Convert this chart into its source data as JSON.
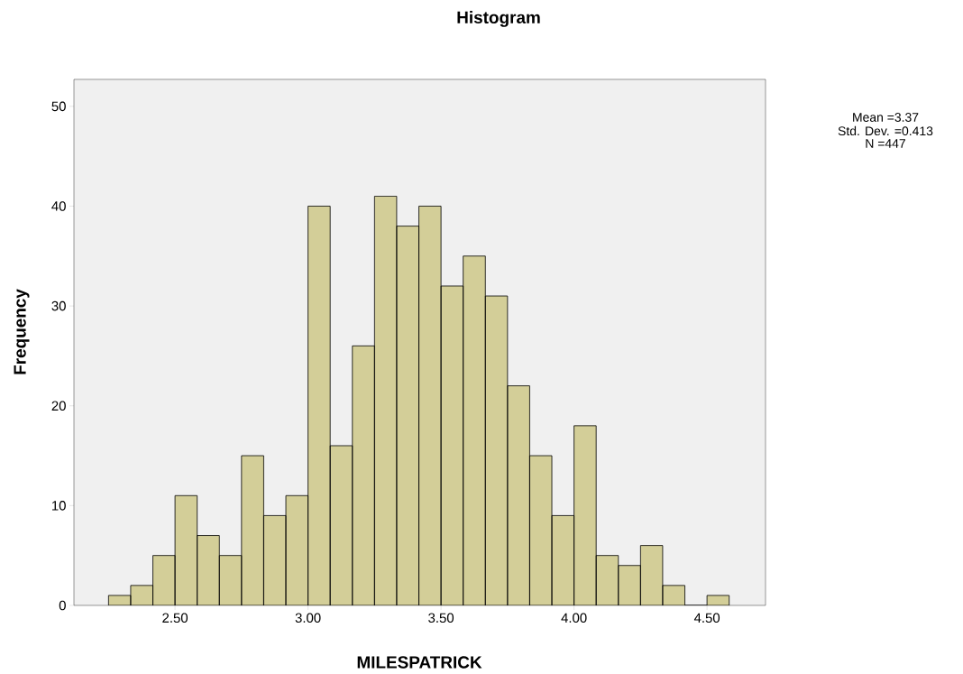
{
  "chart_data": {
    "type": "histogram",
    "title": "Histogram",
    "xlabel": "MILESPATRICK",
    "ylabel": "Frequency",
    "bins": [
      2.25,
      2.3333,
      2.4167,
      2.5,
      2.5833,
      2.6667,
      2.75,
      2.8333,
      2.9167,
      3.0,
      3.0833,
      3.1667,
      3.25,
      3.3333,
      3.4167,
      3.5,
      3.5833,
      3.6667,
      3.75,
      3.8333,
      3.9167,
      4.0,
      4.0833,
      4.1667,
      4.25,
      4.3333,
      4.4167,
      4.5,
      4.5833
    ],
    "values": [
      1,
      2,
      5,
      11,
      7,
      5,
      15,
      9,
      11,
      40,
      16,
      26,
      41,
      38,
      40,
      32,
      35,
      31,
      22,
      15,
      9,
      18,
      5,
      4,
      6,
      2,
      0,
      1
    ],
    "color": "#d3ce98",
    "xlim": [
      2.12,
      4.72
    ],
    "ylim": [
      0,
      52.7
    ],
    "xticks": [
      {
        "value": 2.5,
        "label": "2.50"
      },
      {
        "value": 3.0,
        "label": "3.00"
      },
      {
        "value": 3.5,
        "label": "3.50"
      },
      {
        "value": 4.0,
        "label": "4.00"
      },
      {
        "value": 4.5,
        "label": "4.50"
      }
    ],
    "yticks": [
      0,
      10,
      20,
      30,
      40,
      50
    ],
    "annotations": [
      "Mean =3.37",
      "Std. Dev. =0.413",
      "N =447"
    ]
  }
}
